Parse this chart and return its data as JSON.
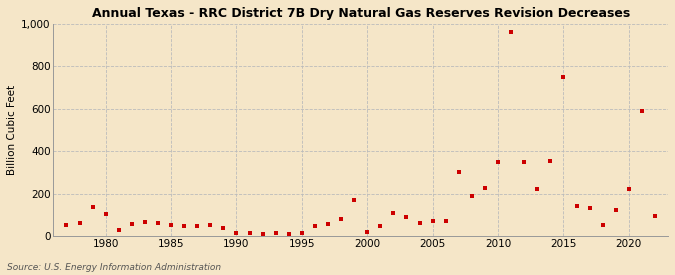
{
  "title": "Annual Texas - RRC District 7B Dry Natural Gas Reserves Revision Decreases",
  "ylabel": "Billion Cubic Feet",
  "source": "Source: U.S. Energy Information Administration",
  "background_color": "#f5e6c8",
  "plot_bg_color": "#f5e6c8",
  "marker_color": "#cc0000",
  "grid_color": "#bbbbbb",
  "xlim": [
    1976,
    2023
  ],
  "ylim": [
    0,
    1000
  ],
  "yticks": [
    0,
    200,
    400,
    600,
    800,
    1000
  ],
  "ytick_labels": [
    "0",
    "200",
    "400",
    "600",
    "800",
    "1,000"
  ],
  "xticks": [
    1980,
    1985,
    1990,
    1995,
    2000,
    2005,
    2010,
    2015,
    2020
  ],
  "years": [
    1977,
    1978,
    1979,
    1980,
    1981,
    1982,
    1983,
    1984,
    1985,
    1986,
    1987,
    1988,
    1989,
    1990,
    1991,
    1992,
    1993,
    1994,
    1995,
    1996,
    1997,
    1998,
    1999,
    2000,
    2001,
    2002,
    2003,
    2004,
    2005,
    2006,
    2007,
    2008,
    2009,
    2010,
    2011,
    2012,
    2013,
    2014,
    2015,
    2016,
    2017,
    2018,
    2019,
    2020,
    2021,
    2022
  ],
  "values": [
    50,
    60,
    135,
    105,
    30,
    55,
    65,
    60,
    50,
    45,
    45,
    50,
    40,
    15,
    12,
    10,
    15,
    10,
    15,
    45,
    55,
    80,
    170,
    20,
    45,
    110,
    90,
    60,
    70,
    70,
    300,
    190,
    225,
    350,
    960,
    350,
    220,
    355,
    750,
    140,
    130,
    50,
    125,
    220,
    590,
    95
  ]
}
